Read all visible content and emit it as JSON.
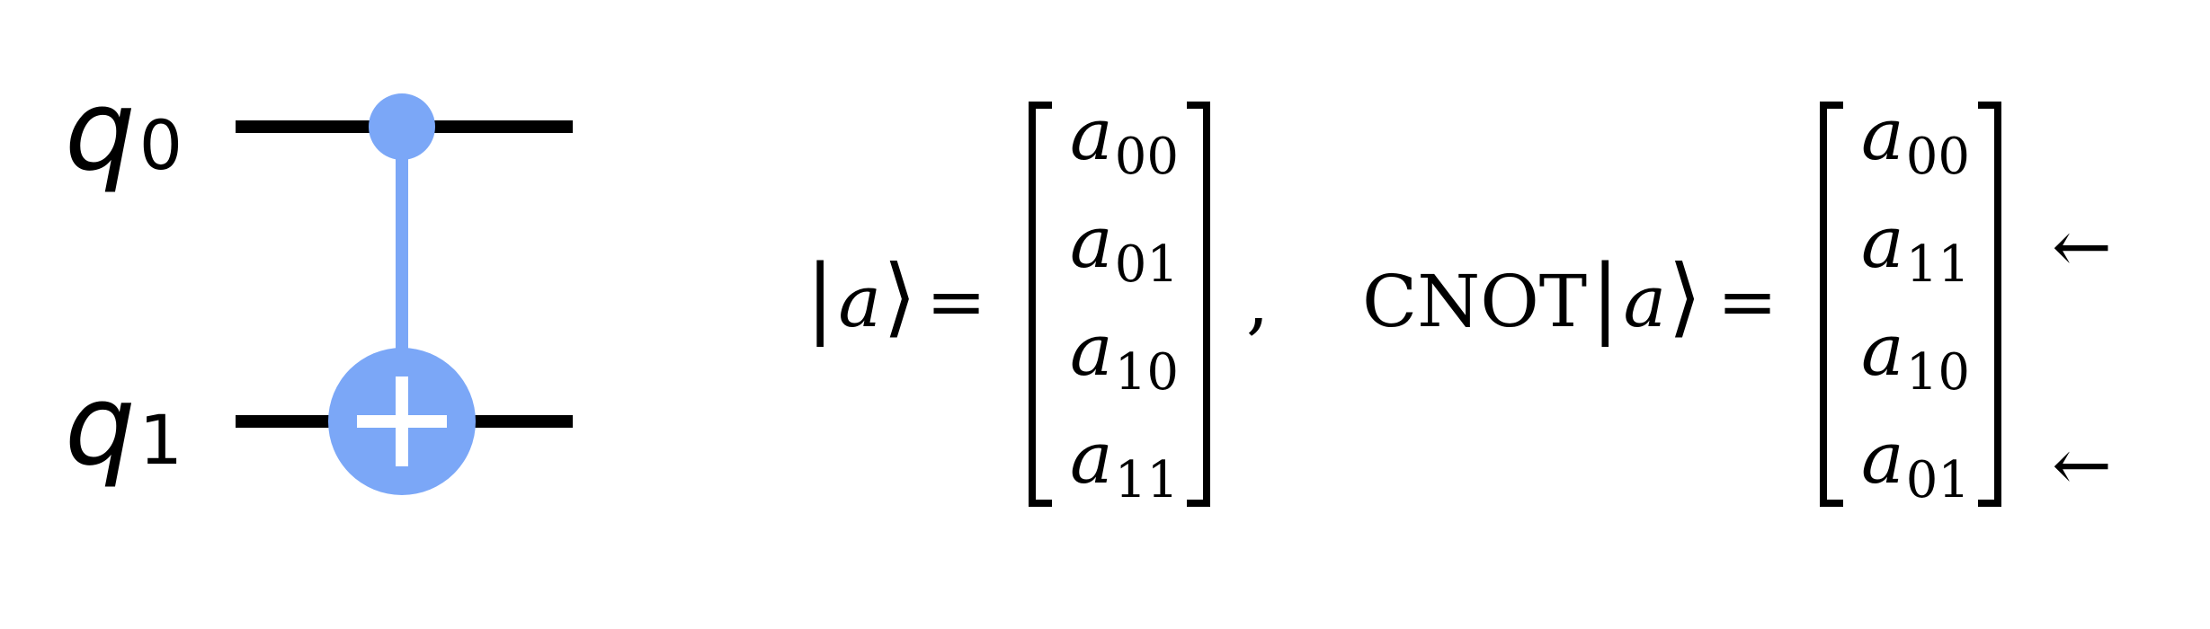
{
  "circuit": {
    "qubits": [
      {
        "letter": "q",
        "index": "0",
        "role": "control"
      },
      {
        "letter": "q",
        "index": "1",
        "role": "target"
      }
    ],
    "gate_color": "#7ba7f7",
    "wire_color": "#000000"
  },
  "equation": {
    "ket_open": "|",
    "ket_var": "a",
    "ket_close": "⟩",
    "equals": "=",
    "comma": ",",
    "operator": "CNOT",
    "state_vector": [
      {
        "var": "a",
        "sub": "00"
      },
      {
        "var": "a",
        "sub": "01"
      },
      {
        "var": "a",
        "sub": "10"
      },
      {
        "var": "a",
        "sub": "11"
      }
    ],
    "result_vector": [
      {
        "var": "a",
        "sub": "00",
        "marker": ""
      },
      {
        "var": "a",
        "sub": "11",
        "marker": "←"
      },
      {
        "var": "a",
        "sub": "10",
        "marker": ""
      },
      {
        "var": "a",
        "sub": "01",
        "marker": "←"
      }
    ]
  }
}
